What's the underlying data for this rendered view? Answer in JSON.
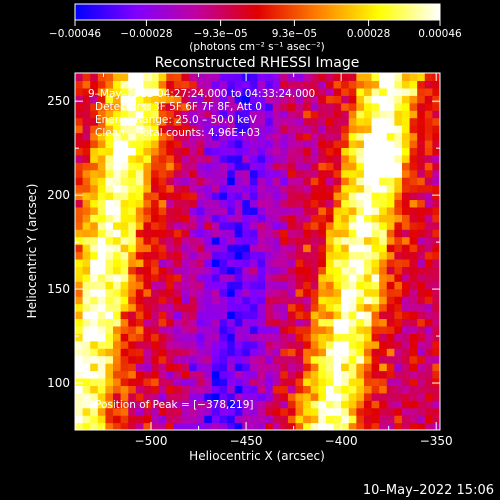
{
  "chart_data": {
    "type": "heatmap",
    "title": "Reconstructed RHESSI Image",
    "xlabel": "Heliocentric X (arcsec)",
    "ylabel": "Heliocentric Y (arcsec)",
    "xlim": [
      -540,
      -348
    ],
    "ylim": [
      75,
      265
    ],
    "x_ticks": [
      -500,
      -450,
      -400,
      -350
    ],
    "x_tick_labels": [
      "−500",
      "−450",
      "−400",
      "−350"
    ],
    "y_ticks": [
      100,
      150,
      200,
      250
    ],
    "y_tick_labels": [
      "100",
      "150",
      "200",
      "250"
    ],
    "colorbar": {
      "range": [
        -0.00046,
        0.00046
      ],
      "ticks": [
        -0.00046,
        -0.00028,
        -9.3e-05,
        9.3e-05,
        0.00028,
        0.00046
      ],
      "tick_labels": [
        "−0.00046",
        "−0.00028",
        "−9.3e−05",
        "9.3e−05",
        "0.00028",
        "0.00046"
      ],
      "unit_label": "(photons cm⁻² s⁻¹ asec⁻²)",
      "colors": [
        "#0000ff",
        "#8000ff",
        "#c000a0",
        "#e00000",
        "#ff8000",
        "#ffff00",
        "#ffffff"
      ]
    },
    "annotations": [
      "9–May–2012 04:27:24.000 to 04:33:24.000",
      "Detectors: 3F 5F 6F 7F 8F, Att 0",
      "Energy Range: 25.0 – 50.0 keV",
      "Clean    Total counts: 4.96E+03"
    ],
    "peak_label": "Position of Peak = [−378,219]",
    "peak": [
      -378,
      219
    ],
    "structure": {
      "bright_bands": [
        {
          "x": [
            [
              -530,
              130
            ],
            [
              -510,
              240
            ]
          ],
          "width_arcsec": 22
        },
        {
          "x": [
            [
              -405,
              90
            ],
            [
              -375,
              255
            ]
          ],
          "width_arcsec": 22
        }
      ],
      "dark_band": {
        "x": [
          [
            -460,
            90
          ],
          [
            -450,
            255
          ]
        ],
        "width_arcsec": 25
      }
    }
  },
  "footer": {
    "timestamp": "10–May–2022 15:06"
  }
}
